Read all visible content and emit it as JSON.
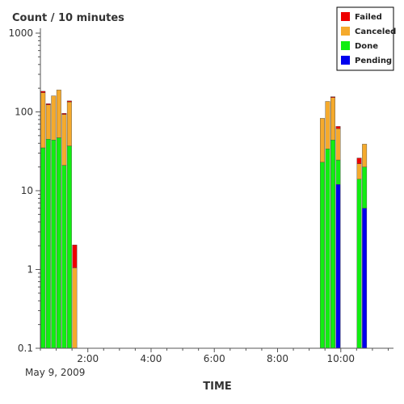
{
  "chart_data": {
    "type": "bar",
    "stacked": true,
    "title": "Count / 10 minutes",
    "xlabel": "TIME",
    "date_label": "May 9, 2009",
    "y_scale": "log",
    "ylim": [
      0.1,
      1000
    ],
    "y_ticks": [
      "0.1",
      "1",
      "10",
      "100",
      "1000"
    ],
    "x_tick_labels": [
      "2:00",
      "4:00",
      "6:00",
      "8:00",
      "10:00"
    ],
    "xlim": [
      "00:30",
      "11:40"
    ],
    "grid": false,
    "legend_position": "top-right",
    "series": [
      {
        "name": "Failed",
        "color": "#ee0000"
      },
      {
        "name": "Canceled",
        "color": "#f5aa2c"
      },
      {
        "name": "Done",
        "color": "#11ee11"
      },
      {
        "name": "Pending",
        "color": "#0000ee"
      }
    ],
    "bars": [
      {
        "time": "00:30",
        "Pending": 0,
        "Done": 35,
        "Canceled": 140,
        "Failed": 8
      },
      {
        "time": "00:40",
        "Pending": 0,
        "Done": 45,
        "Canceled": 78,
        "Failed": 4
      },
      {
        "time": "00:50",
        "Pending": 0,
        "Done": 44,
        "Canceled": 116,
        "Failed": 0
      },
      {
        "time": "01:00",
        "Pending": 0,
        "Done": 47,
        "Canceled": 143,
        "Failed": 0
      },
      {
        "time": "01:10",
        "Pending": 0,
        "Done": 21,
        "Canceled": 72,
        "Failed": 3
      },
      {
        "time": "01:20",
        "Pending": 0,
        "Done": 37,
        "Canceled": 97,
        "Failed": 4
      },
      {
        "time": "01:30",
        "Pending": 0,
        "Done": 0,
        "Canceled": 1.05,
        "Failed": 1.0
      },
      {
        "time": "09:20",
        "Pending": 0,
        "Done": 23,
        "Canceled": 60,
        "Failed": 0
      },
      {
        "time": "09:30",
        "Pending": 0,
        "Done": 34,
        "Canceled": 102,
        "Failed": 0
      },
      {
        "time": "09:40",
        "Pending": 0,
        "Done": 44,
        "Canceled": 108,
        "Failed": 4
      },
      {
        "time": "09:50",
        "Pending": 12,
        "Done": 12.5,
        "Canceled": 37,
        "Failed": 4
      },
      {
        "time": "10:30",
        "Pending": 0,
        "Done": 14,
        "Canceled": 8,
        "Failed": 4
      },
      {
        "time": "10:40",
        "Pending": 6,
        "Done": 14,
        "Canceled": 19,
        "Failed": 0
      }
    ]
  }
}
